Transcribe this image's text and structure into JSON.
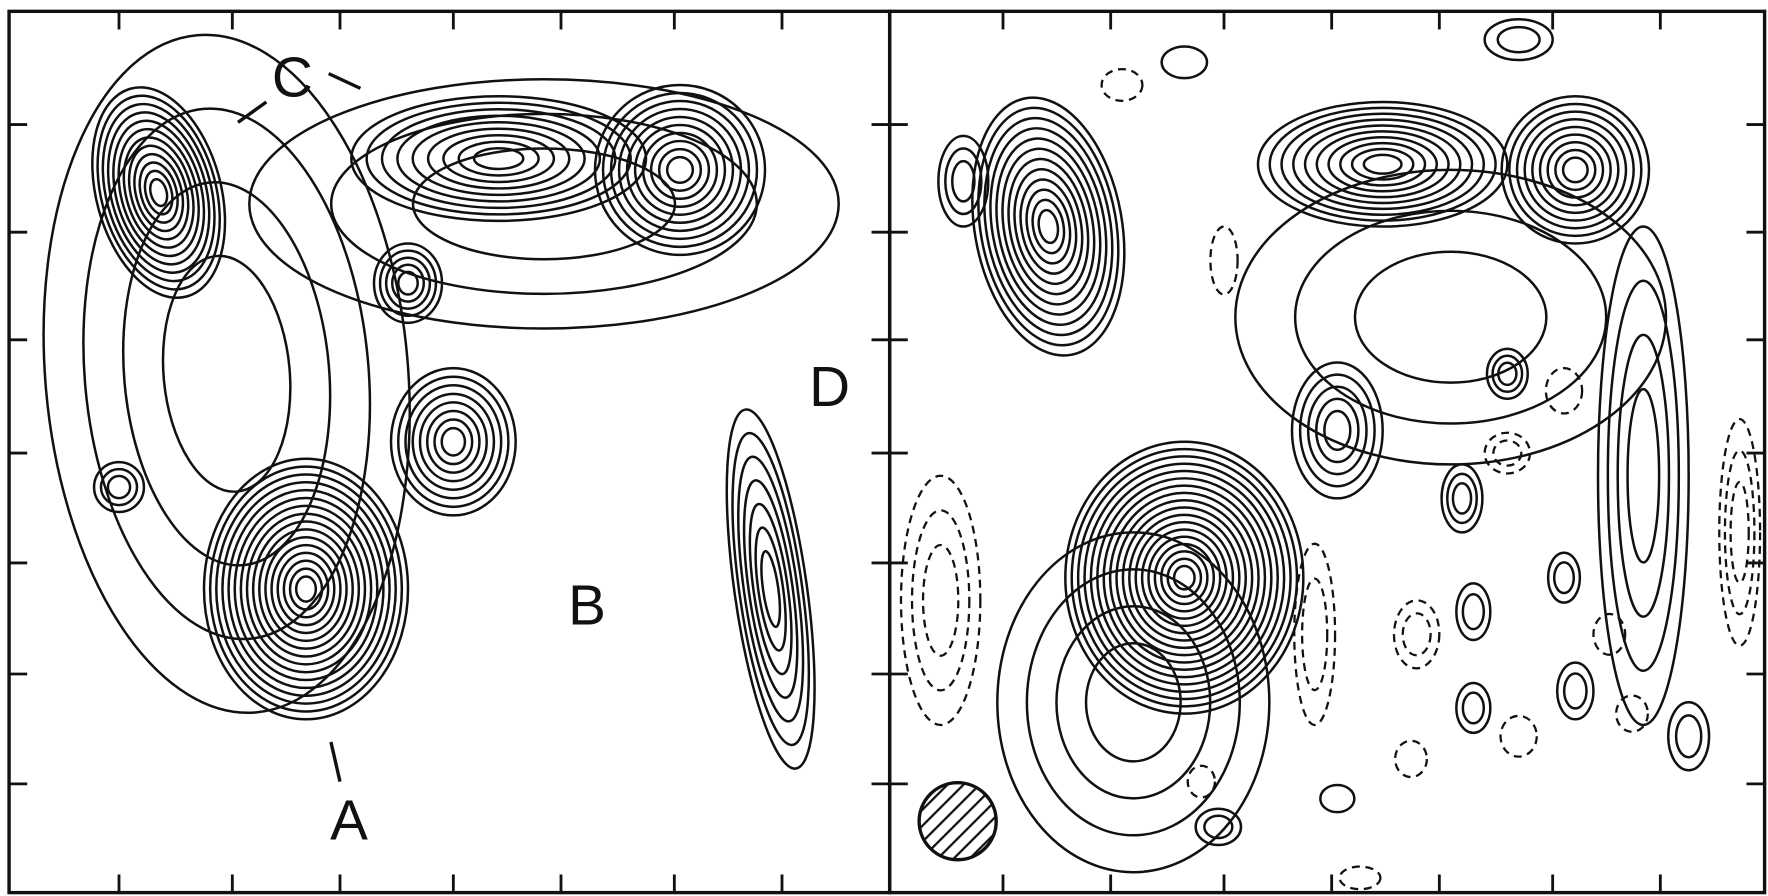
{
  "labels": [
    "C",
    "D",
    "B",
    "A"
  ]
}
